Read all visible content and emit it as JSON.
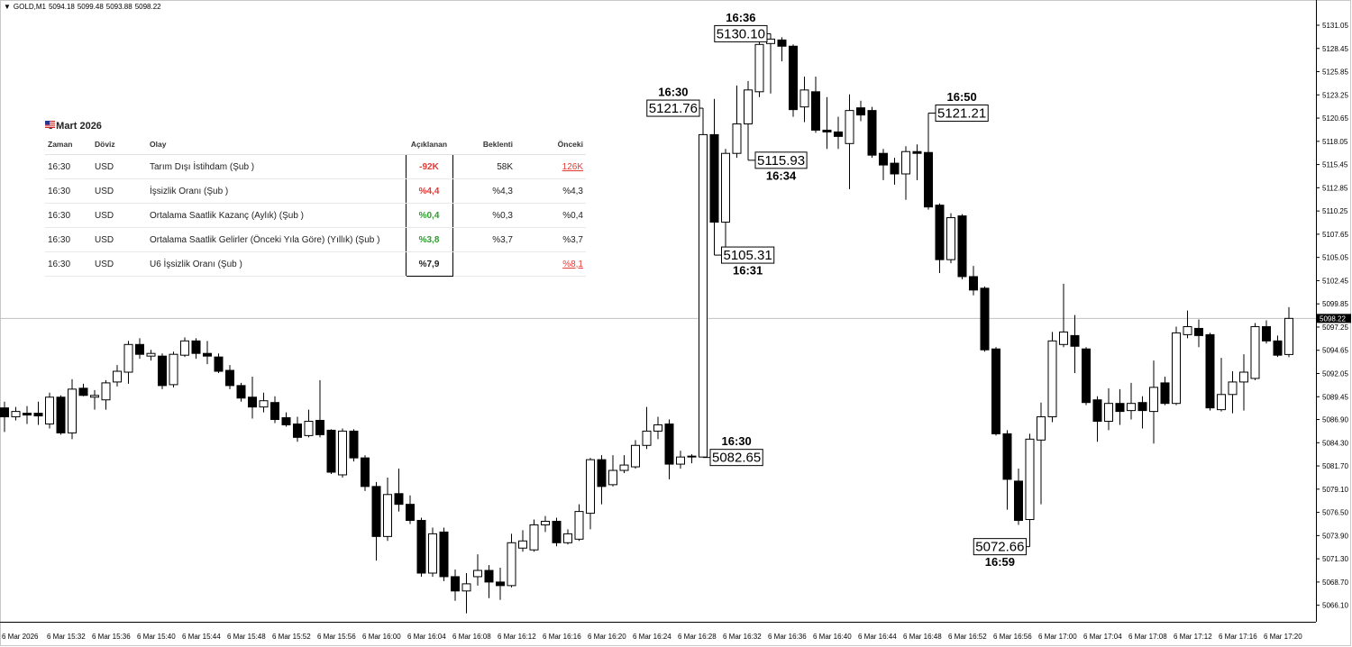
{
  "header": {
    "symbol": "GOLD,M1"
  },
  "table": {
    "title": "6 Mart 2026",
    "columns": [
      "Zaman",
      "Döviz",
      "Olay",
      "Açıklanan",
      "Beklenti",
      "Önceki"
    ],
    "rows": [
      [
        "16:30",
        "USD",
        "Tarım Dışı İstihdam (Şub )",
        "-92K",
        "58K",
        "126K"
      ],
      [
        "16:30",
        "USD",
        "İşsizlik Oranı (Şub )",
        "%4,4",
        "%4,3",
        "%4,3"
      ],
      [
        "16:30",
        "USD",
        "Ortalama Saatlik Kazanç (Aylık) (Şub )",
        "%0,4",
        "%0,3",
        "%0,4"
      ],
      [
        "16:30",
        "USD",
        "Ortalama Saatlik Gelirler (Önceki Yıla Göre) (Yıllık) (Şub )",
        "%3,8",
        "%3,7",
        "%3,7"
      ],
      [
        "16:30",
        "USD",
        "U6 İşsizlik Oranı (Şub )",
        "%7,9",
        null,
        "%8,1"
      ]
    ],
    "actual_colors": [
      "#e53935",
      "#e53935",
      "#2e9e2e",
      "#2e9e2e",
      "#222222"
    ],
    "previous_revised": [
      true,
      false,
      false,
      false,
      true
    ]
  },
  "chart_data": {
    "type": "candlestick",
    "up_color": "#ffffff",
    "down_color": "#000000",
    "line_color": "#000000",
    "categories": [
      "6 Mar 2026",
      null,
      null,
      null,
      "6 Mar 15:32",
      null,
      null,
      null,
      "6 Mar 15:36",
      null,
      null,
      null,
      "6 Mar 15:40",
      null,
      null,
      null,
      "6 Mar 15:44",
      null,
      null,
      null,
      "6 Mar 15:48",
      null,
      null,
      null,
      "6 Mar 15:52",
      null,
      null,
      null,
      "6 Mar 15:56",
      null,
      null,
      null,
      "6 Mar 16:00",
      null,
      null,
      null,
      "6 Mar 16:04",
      null,
      null,
      null,
      "6 Mar 16:08",
      null,
      null,
      null,
      "6 Mar 16:12",
      null,
      null,
      null,
      "6 Mar 16:16",
      null,
      null,
      null,
      "6 Mar 16:20",
      null,
      null,
      null,
      "6 Mar 16:24",
      null,
      null,
      null,
      "6 Mar 16:28",
      null,
      null,
      null,
      "6 Mar 16:32",
      null,
      null,
      null,
      "6 Mar 16:36",
      null,
      null,
      null,
      "6 Mar 16:40",
      null,
      null,
      null,
      "6 Mar 16:44",
      null,
      null,
      null,
      "6 Mar 16:48",
      null,
      null,
      null,
      "6 Mar 16:52",
      null,
      null,
      null,
      "6 Mar 16:56",
      null,
      null,
      null,
      "6 Mar 17:00",
      null,
      null,
      null,
      "6 Mar 17:04",
      null,
      null,
      null,
      "6 Mar 17:08",
      null,
      null,
      null,
      "6 Mar 17:12",
      null,
      null,
      null,
      "6 Mar 17:16",
      null,
      null,
      null,
      "6 Mar 17:20",
      null,
      null
    ],
    "open": [
      5088.2,
      5087.2,
      5087.6,
      5087.6,
      5086.4,
      5089.4,
      5085.4,
      5090.4,
      5089.4,
      5089.1,
      5091.1,
      5092.2,
      5095.3,
      5094.0,
      5094.0,
      5090.8,
      5094.1,
      5095.7,
      5094.3,
      5093.9,
      5092.4,
      5090.7,
      5089.4,
      5088.3,
      5088.8,
      5087.1,
      5086.4,
      5085.1,
      5086.8,
      5085.7,
      5080.7,
      5085.6,
      5082.6,
      5079.4,
      5073.8,
      5078.6,
      5077.4,
      5075.6,
      5069.7,
      5074.3,
      5069.3,
      5067.7,
      5069.3,
      5070.0,
      5068.7,
      5068.3,
      5072.5,
      5072.3,
      5075.1,
      5075.5,
      5073.1,
      5073.5,
      5076.4,
      5082.4,
      5079.6,
      5081.2,
      5081.6,
      5084.0,
      5085.6,
      5086.4,
      5081.9,
      5082.8,
      5082.7,
      5118.8,
      5109.0,
      5116.7,
      5120.0,
      5123.6,
      5129.0,
      5129.4,
      5128.7,
      5121.9,
      5123.6,
      5119.3,
      5119.1,
      5117.8,
      5121.8,
      5121.5,
      5116.7,
      5115.6,
      5114.4,
      5116.9,
      5116.8,
      5110.9,
      5104.8,
      5109.7,
      5102.9,
      5101.6,
      5094.8,
      5085.3,
      5080.0,
      5075.7,
      5084.6,
      5087.2,
      5095.3,
      5096.3,
      5094.8,
      5089.1,
      5086.7,
      5088.7,
      5087.9,
      5088.8,
      5087.8,
      5091.0,
      5088.7,
      5096.4,
      5097.1,
      5096.4,
      5088.0,
      5089.7,
      5091.1,
      5091.5,
      5097.3,
      5095.7,
      5094.18
    ],
    "high": [
      5088.9,
      5088.3,
      5088.4,
      5088.9,
      5089.9,
      5089.6,
      5091.4,
      5090.9,
      5090.2,
      5091.3,
      5093.0,
      5095.7,
      5096.0,
      5094.7,
      5094.3,
      5094.5,
      5096.1,
      5096.0,
      5095.7,
      5094.3,
      5093.0,
      5091.0,
      5091.7,
      5089.9,
      5089.5,
      5087.7,
      5087.2,
      5088.0,
      5091.3,
      5085.8,
      5085.9,
      5085.8,
      5082.9,
      5079.9,
      5080.4,
      5081.4,
      5078.4,
      5075.9,
      5074.8,
      5074.8,
      5070.1,
      5069.7,
      5071.8,
      5070.6,
      5070.3,
      5074.1,
      5074.5,
      5075.7,
      5076.1,
      5075.9,
      5074.6,
      5077.4,
      5082.6,
      5082.9,
      5082.9,
      5082.9,
      5084.6,
      5088.3,
      5087.2,
      5086.9,
      5083.4,
      5083.0,
      5121.76,
      5122.8,
      5117.2,
      5124.3,
      5124.8,
      5129.4,
      5130.1,
      5129.7,
      5128.9,
      5125.3,
      5125.3,
      5123.0,
      5120.8,
      5123.3,
      5122.6,
      5121.9,
      5117.2,
      5116.2,
      5117.5,
      5117.7,
      5121.21,
      5111.1,
      5110.0,
      5109.9,
      5104.1,
      5101.8,
      5095.0,
      5085.7,
      5081.4,
      5085.3,
      5088.8,
      5096.7,
      5102.1,
      5098.6,
      5095.0,
      5089.5,
      5090.4,
      5090.3,
      5091.0,
      5089.5,
      5093.5,
      5091.7,
      5097.3,
      5099.1,
      5098.1,
      5096.6,
      5093.8,
      5092.3,
      5094.2,
      5097.7,
      5098.0,
      5096.3,
      5099.48
    ],
    "low": [
      5085.5,
      5086.8,
      5086.4,
      5086.3,
      5085.9,
      5085.2,
      5084.7,
      5089.5,
      5088.0,
      5088.0,
      5090.6,
      5090.9,
      5093.7,
      5093.5,
      5090.3,
      5090.5,
      5093.9,
      5093.7,
      5093.1,
      5092.1,
      5090.3,
      5088.9,
      5087.0,
      5087.7,
      5086.5,
      5086.1,
      5084.4,
      5084.9,
      5084.9,
      5080.8,
      5080.4,
      5082.2,
      5078.9,
      5071.1,
      5073.3,
      5076.6,
      5075.2,
      5069.3,
      5069.3,
      5068.8,
      5066.6,
      5065.2,
      5068.3,
      5066.9,
      5066.7,
      5068.1,
      5072.1,
      5072.1,
      5074.3,
      5072.7,
      5072.9,
      5073.3,
      5074.6,
      5077.4,
      5079.4,
      5080.9,
      5081.4,
      5083.6,
      5084.7,
      5080.2,
      5081.4,
      5082.0,
      5082.65,
      5105.31,
      5106.1,
      5116.2,
      5115.93,
      5123.0,
      5123.4,
      5127.0,
      5120.8,
      5120.2,
      5119.0,
      5117.2,
      5117.2,
      5112.7,
      5120.3,
      5116.2,
      5113.7,
      5113.2,
      5111.5,
      5113.7,
      5110.4,
      5103.3,
      5104.4,
      5102.6,
      5100.8,
      5094.5,
      5085.1,
      5076.8,
      5075.1,
      5072.66,
      5077.4,
      5086.6,
      5095.0,
      5092.1,
      5088.5,
      5084.4,
      5085.7,
      5086.3,
      5086.9,
      5085.9,
      5084.2,
      5088.5,
      5088.5,
      5096.0,
      5095.0,
      5087.9,
      5087.8,
      5087.6,
      5087.9,
      5091.3,
      5095.4,
      5093.9,
      5093.88
    ],
    "close": [
      5087.2,
      5087.8,
      5087.4,
      5087.3,
      5089.4,
      5085.4,
      5090.3,
      5089.6,
      5089.6,
      5091.0,
      5092.3,
      5095.3,
      5094.2,
      5094.3,
      5090.7,
      5094.2,
      5095.7,
      5094.3,
      5094.0,
      5092.3,
      5090.7,
      5089.3,
      5088.3,
      5089.0,
      5086.9,
      5086.3,
      5084.9,
      5086.7,
      5085.2,
      5081.0,
      5085.6,
      5082.6,
      5079.4,
      5073.8,
      5078.5,
      5077.4,
      5075.6,
      5069.7,
      5074.1,
      5069.3,
      5067.7,
      5068.5,
      5070.0,
      5068.7,
      5068.3,
      5073.1,
      5073.3,
      5075.1,
      5075.5,
      5073.1,
      5074.1,
      5076.6,
      5082.4,
      5079.4,
      5081.2,
      5081.8,
      5084.0,
      5085.6,
      5086.3,
      5081.9,
      5082.7,
      5082.7,
      5118.8,
      5109.0,
      5116.7,
      5120.0,
      5123.8,
      5128.9,
      5129.5,
      5128.7,
      5121.6,
      5123.8,
      5119.3,
      5119.1,
      5118.6,
      5121.5,
      5121.0,
      5116.5,
      5115.4,
      5114.4,
      5116.9,
      5116.7,
      5110.7,
      5104.8,
      5109.5,
      5102.9,
      5101.4,
      5094.7,
      5085.3,
      5080.2,
      5075.6,
      5084.7,
      5087.2,
      5095.7,
      5096.7,
      5095.1,
      5088.8,
      5086.7,
      5088.7,
      5087.8,
      5088.7,
      5087.9,
      5090.5,
      5088.7,
      5096.6,
      5097.3,
      5096.3,
      5088.2,
      5089.7,
      5091.1,
      5092.2,
      5097.3,
      5095.7,
      5094.1,
      5098.22
    ],
    "ylim": [
      5064.25,
      5133.37
    ],
    "yticks": [
      5131.05,
      5128.45,
      5125.85,
      5123.25,
      5120.65,
      5118.05,
      5115.45,
      5112.85,
      5110.25,
      5107.65,
      5105.05,
      5102.45,
      5099.85,
      5097.25,
      5094.65,
      5092.05,
      5089.45,
      {
        "value": 5086.9,
        "label": "5086.90"
      },
      {
        "value": 5084.3,
        "label": "5084.30"
      },
      {
        "value": 5081.7,
        "label": "5081.70"
      },
      {
        "value": 5079.1,
        "label": "5079.10"
      },
      {
        "value": 5076.5,
        "label": "5076.50"
      },
      {
        "value": 5073.9,
        "label": "5073.90"
      },
      {
        "value": 5071.3,
        "label": "5071.30"
      },
      {
        "value": 5068.7,
        "label": "5068.70"
      },
      {
        "value": 5066.1,
        "label": "5066.10"
      }
    ],
    "grid": false,
    "annotations": {
      "times": [
        "16:30",
        "16:36",
        "16:31",
        "16:34",
        "16:50",
        "16:30",
        "16:59"
      ],
      "values": [
        5121.76,
        5130.1,
        5105.31,
        5115.93,
        5121.21,
        5082.65,
        5072.66
      ],
      "value_labels": [
        "5121.76",
        "5130.10",
        "5105.31",
        "5115.93",
        "5121.21",
        "5082.65",
        "5072.66"
      ]
    }
  }
}
